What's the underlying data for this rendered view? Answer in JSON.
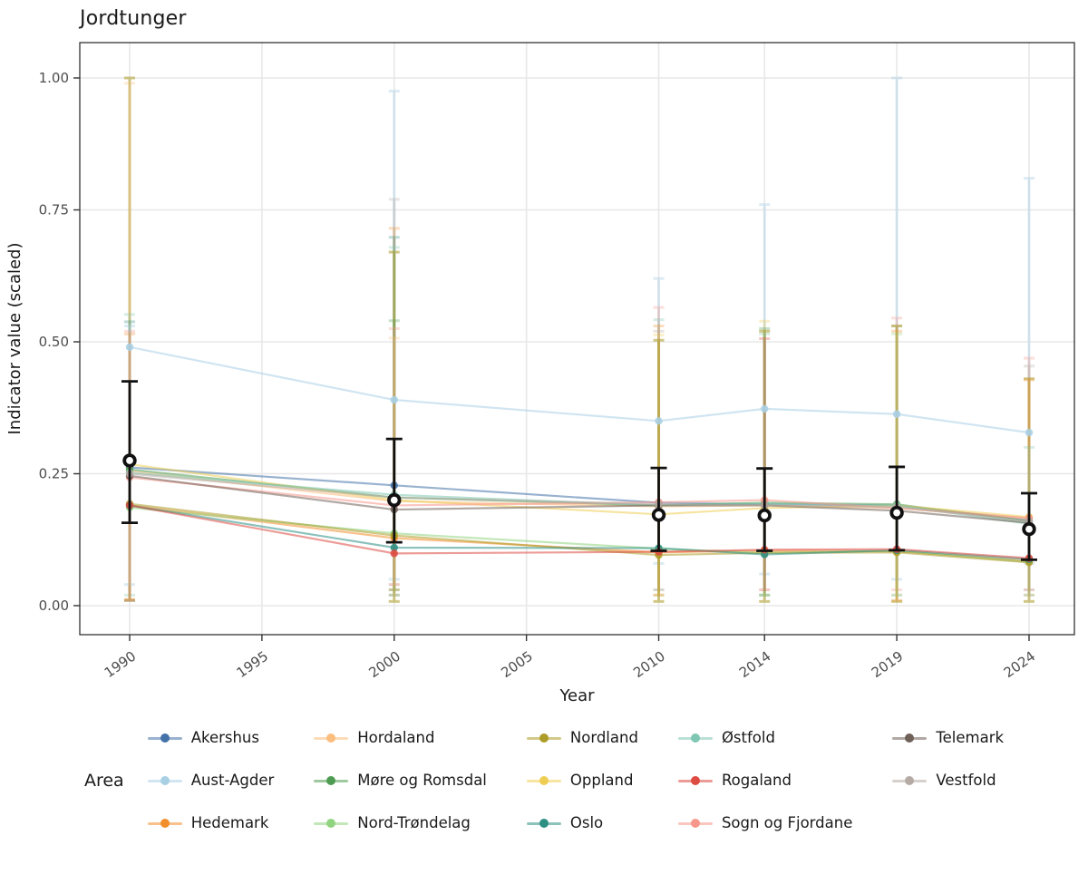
{
  "chart_data": {
    "type": "line",
    "title": "Jordtunger",
    "xlabel": "Year",
    "ylabel": "Indicator value (scaled)",
    "x_ticks": [
      1990,
      1995,
      2000,
      2005,
      2010,
      2014,
      2019,
      2024
    ],
    "y_ticks": [
      0.0,
      0.25,
      0.5,
      0.75,
      1.0
    ],
    "y_tick_labels": [
      "0.00",
      "0.25",
      "0.50",
      "0.75",
      "1.00"
    ],
    "xlim": [
      1988.1,
      2025.7
    ],
    "ylim": [
      -0.055,
      1.067
    ],
    "grid": true,
    "x": [
      1990,
      2000,
      2010,
      2014,
      2019,
      2024
    ],
    "series": [
      {
        "name": "Akershus",
        "color": "#4472A8",
        "values": [
          0.262,
          0.228,
          0.195,
          0.192,
          0.19,
          0.162
        ]
      },
      {
        "name": "Aust-Agder",
        "color": "#A9CFE5",
        "values": [
          0.49,
          0.39,
          0.35,
          0.373,
          0.363,
          0.328
        ]
      },
      {
        "name": "Hedemark",
        "color": "#F28E2B",
        "values": [
          0.19,
          0.128,
          0.101,
          0.104,
          0.103,
          0.085
        ]
      },
      {
        "name": "Hordaland",
        "color": "#FBBE7E",
        "values": [
          0.255,
          0.198,
          0.188,
          0.19,
          0.185,
          0.165
        ]
      },
      {
        "name": "Møre og Romsdal",
        "color": "#4E9C51",
        "values": [
          0.258,
          0.205,
          0.19,
          0.195,
          0.192,
          0.16
        ]
      },
      {
        "name": "Nord-Trøndelag",
        "color": "#90D47F",
        "values": [
          0.186,
          0.137,
          0.108,
          0.1,
          0.104,
          0.083
        ]
      },
      {
        "name": "Nordland",
        "color": "#AD9D28",
        "values": [
          0.193,
          0.133,
          0.096,
          0.1,
          0.101,
          0.082
        ]
      },
      {
        "name": "Oppland",
        "color": "#EFCE54",
        "values": [
          0.268,
          0.2,
          0.173,
          0.185,
          0.19,
          0.168
        ]
      },
      {
        "name": "Oslo",
        "color": "#2E8F85",
        "values": [
          0.19,
          0.11,
          0.109,
          0.097,
          0.105,
          0.088
        ]
      },
      {
        "name": "Østfold",
        "color": "#7FC7B2",
        "values": [
          0.252,
          0.21,
          0.19,
          0.193,
          0.19,
          0.155
        ]
      },
      {
        "name": "Rogaland",
        "color": "#DD4B42",
        "values": [
          0.19,
          0.099,
          0.102,
          0.106,
          0.107,
          0.09
        ]
      },
      {
        "name": "Sogn og Fjordane",
        "color": "#F7968B",
        "values": [
          0.243,
          0.19,
          0.196,
          0.2,
          0.185,
          0.166
        ]
      },
      {
        "name": "Telemark",
        "color": "#6F6058",
        "values": [
          0.246,
          0.182,
          0.19,
          0.19,
          0.18,
          0.157
        ]
      },
      {
        "name": "Vestfold",
        "color": "#B5ABA4",
        "values": [
          0.25,
          0.205,
          0.192,
          0.19,
          0.187,
          0.16
        ]
      }
    ],
    "mean_series": {
      "name": "Mean",
      "color": "#111111",
      "values": [
        0.275,
        0.2,
        0.172,
        0.171,
        0.176,
        0.145
      ],
      "lo": [
        0.157,
        0.12,
        0.104,
        0.104,
        0.105,
        0.087
      ],
      "hi": [
        0.425,
        0.316,
        0.261,
        0.26,
        0.263,
        0.213
      ]
    },
    "uncertainty_bars": [
      {
        "year": 1990,
        "series": "Nordland",
        "lo": 0.01,
        "hi": 1.0,
        "op": 0.55
      },
      {
        "year": 1990,
        "series": "Hordaland",
        "lo": 0.012,
        "hi": 0.99,
        "op": 0.3
      },
      {
        "year": 1990,
        "series": "Østfold",
        "lo": 0.02,
        "hi": 0.552,
        "op": 0.3
      },
      {
        "year": 1990,
        "series": "Oslo",
        "lo": 0.01,
        "hi": 0.538,
        "op": 0.3
      },
      {
        "year": 1990,
        "series": "Aust-Agder",
        "lo": 0.04,
        "hi": 0.53,
        "op": 0.4
      },
      {
        "year": 1990,
        "series": "Sogn og Fjordane",
        "lo": 0.01,
        "hi": 0.52,
        "op": 0.3
      },
      {
        "year": 1990,
        "series": "Hedemark",
        "lo": 0.011,
        "hi": 0.515,
        "op": 0.3
      },
      {
        "year": 2000,
        "series": "Aust-Agder",
        "lo": 0.05,
        "hi": 0.975,
        "op": 0.4
      },
      {
        "year": 2000,
        "series": "Vestfold",
        "lo": 0.04,
        "hi": 0.77,
        "op": 0.3
      },
      {
        "year": 2000,
        "series": "Hedemark",
        "lo": 0.03,
        "hi": 0.715,
        "op": 0.3
      },
      {
        "year": 2000,
        "series": "Oslo",
        "lo": 0.02,
        "hi": 0.698,
        "op": 0.3
      },
      {
        "year": 2000,
        "series": "Østfold",
        "lo": 0.02,
        "hi": 0.679,
        "op": 0.3
      },
      {
        "year": 2000,
        "series": "Nordland",
        "lo": 0.008,
        "hi": 0.67,
        "op": 0.55
      },
      {
        "year": 2000,
        "series": "Møre og Romsdal",
        "lo": 0.03,
        "hi": 0.54,
        "op": 0.3
      },
      {
        "year": 2000,
        "series": "Sogn og Fjordane",
        "lo": 0.04,
        "hi": 0.525,
        "op": 0.3
      },
      {
        "year": 2000,
        "series": "Hordaland",
        "lo": 0.02,
        "hi": 0.507,
        "op": 0.3
      },
      {
        "year": 2010,
        "series": "Aust-Agder",
        "lo": 0.08,
        "hi": 0.62,
        "op": 0.4
      },
      {
        "year": 2010,
        "series": "Sogn og Fjordane",
        "lo": 0.03,
        "hi": 0.565,
        "op": 0.3
      },
      {
        "year": 2010,
        "series": "Østfold",
        "lo": 0.03,
        "hi": 0.542,
        "op": 0.3
      },
      {
        "year": 2010,
        "series": "Hedemark",
        "lo": 0.02,
        "hi": 0.53,
        "op": 0.3
      },
      {
        "year": 2010,
        "series": "Vestfold",
        "lo": 0.02,
        "hi": 0.52,
        "op": 0.3
      },
      {
        "year": 2010,
        "series": "Oppland",
        "lo": 0.02,
        "hi": 0.513,
        "op": 0.3
      },
      {
        "year": 2010,
        "series": "Nordland",
        "lo": 0.008,
        "hi": 0.503,
        "op": 0.55
      },
      {
        "year": 2014,
        "series": "Aust-Agder",
        "lo": 0.06,
        "hi": 0.76,
        "op": 0.4
      },
      {
        "year": 2014,
        "series": "Oppland",
        "lo": 0.02,
        "hi": 0.539,
        "op": 0.3
      },
      {
        "year": 2014,
        "series": "Møre og Romsdal",
        "lo": 0.02,
        "hi": 0.525,
        "op": 0.3
      },
      {
        "year": 2014,
        "series": "Nordland",
        "lo": 0.008,
        "hi": 0.52,
        "op": 0.55
      },
      {
        "year": 2014,
        "series": "Østfold",
        "lo": 0.02,
        "hi": 0.515,
        "op": 0.3
      },
      {
        "year": 2014,
        "series": "Rogaland",
        "lo": 0.03,
        "hi": 0.506,
        "op": 0.3
      },
      {
        "year": 2019,
        "series": "Aust-Agder",
        "lo": 0.05,
        "hi": 1.0,
        "op": 0.4
      },
      {
        "year": 2019,
        "series": "Sogn og Fjordane",
        "lo": 0.03,
        "hi": 0.545,
        "op": 0.3
      },
      {
        "year": 2019,
        "series": "Vestfold",
        "lo": 0.02,
        "hi": 0.53,
        "op": 0.3
      },
      {
        "year": 2019,
        "series": "Nordland",
        "lo": 0.008,
        "hi": 0.53,
        "op": 0.55
      },
      {
        "year": 2019,
        "series": "Hedemark",
        "lo": 0.01,
        "hi": 0.52,
        "op": 0.3
      },
      {
        "year": 2019,
        "series": "Nord-Trøndelag",
        "lo": 0.02,
        "hi": 0.515,
        "op": 0.3
      },
      {
        "year": 2024,
        "series": "Aust-Agder",
        "lo": 0.08,
        "hi": 0.81,
        "op": 0.4
      },
      {
        "year": 2024,
        "series": "Sogn og Fjordane",
        "lo": 0.03,
        "hi": 0.469,
        "op": 0.3
      },
      {
        "year": 2024,
        "series": "Vestfold",
        "lo": 0.03,
        "hi": 0.454,
        "op": 0.3
      },
      {
        "year": 2024,
        "series": "Nordland",
        "lo": 0.008,
        "hi": 0.43,
        "op": 0.55
      },
      {
        "year": 2024,
        "series": "Hedemark",
        "lo": 0.02,
        "hi": 0.428,
        "op": 0.3
      },
      {
        "year": 2024,
        "series": "Østfold",
        "lo": 0.02,
        "hi": 0.3,
        "op": 0.3
      }
    ],
    "legend": {
      "title": "Area",
      "columns": 5,
      "position": "bottom",
      "items": [
        "Akershus",
        "Aust-Agder",
        "Hedemark",
        "Hordaland",
        "Møre og Romsdal",
        "Nord-Trøndelag",
        "Nordland",
        "Oppland",
        "Oslo",
        "Østfold",
        "Rogaland",
        "Sogn og Fjordane",
        "Telemark",
        "Vestfold"
      ]
    },
    "colors": {
      "panel_border": "#333333",
      "gridline": "#e8e8e8",
      "tick_label": "#4d4d4d",
      "axis_title": "#1a1a1a",
      "mean": "#111111"
    }
  }
}
